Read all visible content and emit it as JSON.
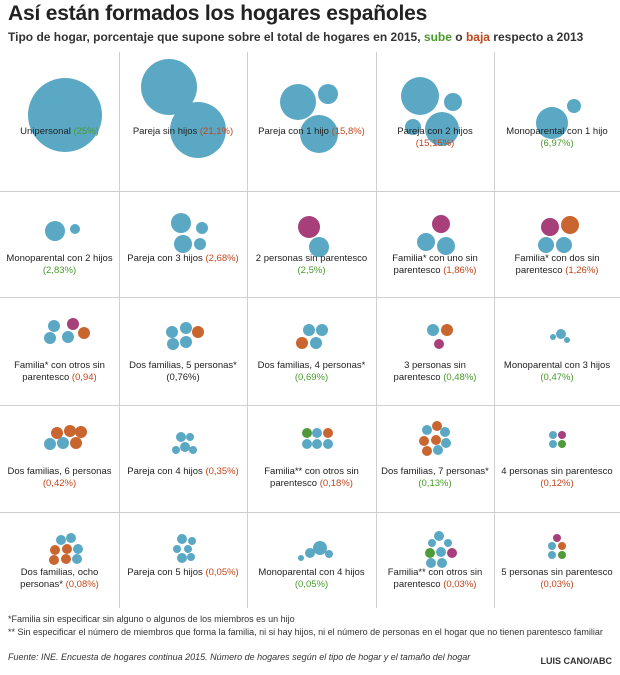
{
  "header": {
    "title": "Así están formados los hogares españoles",
    "subtitle_prefix": "Tipo de hogar, porcentaje que supone sobre el total de hogares en 2015,",
    "subtitle_up": "sube",
    "subtitle_mid": "o",
    "subtitle_down": "baja",
    "subtitle_suffix": "respecto a 2013"
  },
  "colors": {
    "member": "#5aa8c4",
    "extra_member": "#c9652f",
    "non_relative": "#a63f7a",
    "unspecified": "#4f9a3a",
    "up_text": "#4a9a2c",
    "down_text": "#c0461c"
  },
  "chart_data": {
    "type": "bubble-grid",
    "unit": "% of households",
    "items": [
      {
        "label": "Unipersonal",
        "value": 25,
        "display": "(25%)",
        "trend": "up"
      },
      {
        "label": "Pareja sin hijos",
        "value": 21.1,
        "display": "(21,1%)",
        "trend": "down"
      },
      {
        "label": "Pareja con 1 hijo",
        "value": 15.8,
        "display": "(15,8%)",
        "trend": "down"
      },
      {
        "label": "Pareja con 2 hijos",
        "value": 15.15,
        "display": "(15,15%)",
        "trend": "down"
      },
      {
        "label": "Monoparental con 1 hijo",
        "value": 6.97,
        "display": "(6,97%)",
        "trend": "up"
      },
      {
        "label": "Monoparental con 2 hijos",
        "value": 2.83,
        "display": "(2,83%)",
        "trend": "up"
      },
      {
        "label": "Pareja con 3 hijos",
        "value": 2.68,
        "display": "(2,68%)",
        "trend": "down"
      },
      {
        "label": "2 personas sin parentesco",
        "value": 2.5,
        "display": "(2,5%)",
        "trend": "up"
      },
      {
        "label": "Familia* con uno sin parentesco",
        "value": 1.86,
        "display": "(1,86%)",
        "trend": "down"
      },
      {
        "label": "Familia* con dos sin parentesco",
        "value": 1.26,
        "display": "(1,26%)",
        "trend": "down"
      },
      {
        "label": "Familia* con otros sin parentesco",
        "value": 0.94,
        "display": "(0,94)",
        "trend": "down"
      },
      {
        "label": "Dos familias, 5 personas*",
        "value": 0.76,
        "display": "(0,76%)",
        "trend": "none"
      },
      {
        "label": "Dos familias, 4 personas*",
        "value": 0.69,
        "display": "(0,69%)",
        "trend": "up"
      },
      {
        "label": "3 personas sin parentesco",
        "value": 0.48,
        "display": "(0,48%)",
        "trend": "up"
      },
      {
        "label": "Monoparental con 3 hijos",
        "value": 0.47,
        "display": "(0,47%)",
        "trend": "up"
      },
      {
        "label": "Dos familias, 6 personas",
        "value": 0.42,
        "display": "(0,42%)",
        "trend": "down"
      },
      {
        "label": "Pareja con 4 hijos",
        "value": 0.35,
        "display": "(0,35%)",
        "trend": "down"
      },
      {
        "label": "Familia** con otros sin parentesco",
        "value": 0.18,
        "display": "(0,18%)",
        "trend": "down"
      },
      {
        "label": "Dos familias, 7 personas*",
        "value": 0.13,
        "display": "(0,13%)",
        "trend": "up"
      },
      {
        "label": "4 personas sin parentesco",
        "value": 0.12,
        "display": "(0,12%)",
        "trend": "down"
      },
      {
        "label": "Dos familias, ocho personas*",
        "value": 0.08,
        "display": "(0,08%)",
        "trend": "down"
      },
      {
        "label": "Pareja con 5 hijos",
        "value": 0.05,
        "display": "(0,05%)",
        "trend": "down"
      },
      {
        "label": "Monoparental con 4 hijos",
        "value": 0.05,
        "display": "(0,05%)",
        "trend": "up"
      },
      {
        "label": "Familia** con otros sin parentesco",
        "value": 0.03,
        "display": "(0,03%)",
        "trend": "down"
      },
      {
        "label": "5 personas sin parentesco",
        "value": 0.03,
        "display": "(0,03%)",
        "trend": "down"
      }
    ]
  },
  "notes": {
    "note1": "*Familia sin especificar sin alguno o algunos de los miembros es un hijo",
    "note2": "** Sin especificar el número de miembros que forma la familia, ni si hay hijos, ni el número de personas en el hogar que no tienen parentesco familiar"
  },
  "source": "Fuente: INE. Encuesta de hogares continua 2015. Número de hogares según el tipo de hogar y el tamaño del hogar",
  "credit": "LUIS CANO/ABC"
}
